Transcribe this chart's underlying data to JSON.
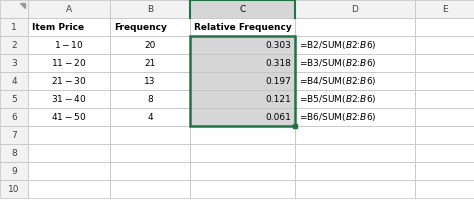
{
  "item_prices": [
    "$1 - $10",
    "$11 - $20",
    "$21 - $30",
    "$31 - $40",
    "$41 - $50"
  ],
  "frequencies": [
    20,
    21,
    13,
    8,
    4
  ],
  "relative_frequencies": [
    0.303,
    0.318,
    0.197,
    0.121,
    0.061
  ],
  "formulas": [
    "=B2/SUM($B$2:$B$6)",
    "=B3/SUM($B$2:$B$6)",
    "=B4/SUM($B$2:$B$6)",
    "=B5/SUM($B$2:$B$6)",
    "=B6/SUM($B$2:$B$6)"
  ],
  "bg_color": "#ffffff",
  "grid_color": "#bfbfbf",
  "col_header_bg": "#f2f2f2",
  "col_c_bg": "#d6d6d6",
  "col_c_header_bg": "#d6d6d6",
  "col_c_selected_border": "#217346",
  "row_num_bg": "#f2f2f2",
  "white_bg": "#ffffff",
  "col_labels": [
    "A",
    "B",
    "C",
    "D",
    "E"
  ],
  "header_texts": [
    "Item Price",
    "Frequency",
    "Relative Frequency"
  ],
  "figsize": [
    4.74,
    2.04
  ],
  "dpi": 100
}
